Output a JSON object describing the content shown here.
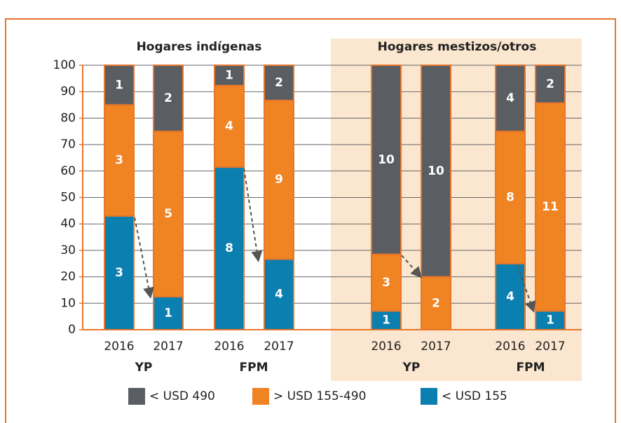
{
  "chart_data": {
    "type": "bar",
    "stacked": true,
    "panels": [
      {
        "label": "Hogares indígenas"
      },
      {
        "label": "Hogares mestizos/otros"
      }
    ],
    "groups": [
      {
        "label": "YP"
      },
      {
        "label": "FPM"
      },
      {
        "label": "YP"
      },
      {
        "label": "FPM"
      }
    ],
    "categories": [
      "2016",
      "2017",
      "2016",
      "2017",
      "2016",
      "2017",
      "2016",
      "2017"
    ],
    "series": [
      {
        "name": "< USD 155",
        "color": "#0a7fb0",
        "values": [
          43,
          12.5,
          61.5,
          26.7,
          7.1,
          0,
          25,
          7.1
        ],
        "counts": [
          3,
          1,
          8,
          4,
          1,
          null,
          4,
          1
        ]
      },
      {
        "name": "> USD 155-490",
        "color": "#f08322",
        "values": [
          42,
          62.5,
          30.8,
          60,
          21.4,
          20,
          50,
          78.6
        ],
        "counts": [
          3,
          5,
          4,
          9,
          3,
          2,
          8,
          11
        ]
      },
      {
        "name": "< USD 490",
        "color": "#5a5e63",
        "values": [
          15,
          25,
          7.7,
          13.3,
          71.5,
          80,
          25,
          14.3
        ],
        "counts": [
          1,
          2,
          1,
          2,
          10,
          10,
          4,
          2
        ]
      }
    ],
    "ylim": [
      0,
      100
    ],
    "yticks": [
      0,
      10,
      20,
      30,
      40,
      50,
      60,
      70,
      80,
      90,
      100
    ],
    "grid": true
  }
}
